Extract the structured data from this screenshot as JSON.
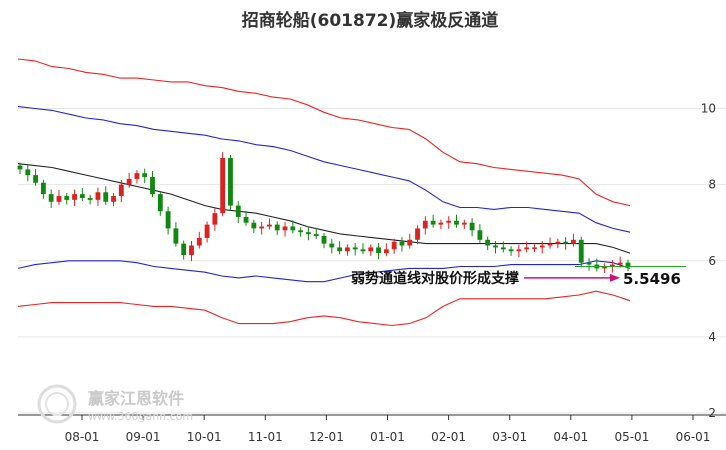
{
  "chart_data": {
    "type": "line",
    "title": "招商轮船(601872)赢家极反通道",
    "y_ticks": [
      2,
      4,
      6,
      8,
      10
    ],
    "ylim": [
      2,
      11.8
    ],
    "x_ticks": [
      "08-01",
      "09-01",
      "10-01",
      "11-01",
      "12-01",
      "01-01",
      "02-01",
      "03-01",
      "04-01",
      "05-01",
      "06-01"
    ],
    "grid": "horizontal",
    "annotation": {
      "text": "弱势通道线对股价形成支撑",
      "value": "5.5496"
    },
    "watermark": {
      "text": "赢家江恩软件",
      "url": "www.360gann.com"
    },
    "colors": {
      "up": "#dd2222",
      "down": "#118811",
      "outer_band": "#ee2222",
      "inner_band": "#2222dd",
      "mid_line": "#222222",
      "arrow": "#cc1177",
      "support": "#22aa22"
    },
    "series": [
      {
        "role": "outer-upper",
        "values": [
          11.3,
          11.25,
          11.1,
          11.05,
          10.95,
          10.9,
          10.8,
          10.8,
          10.75,
          10.7,
          10.7,
          10.6,
          10.55,
          10.45,
          10.4,
          10.3,
          10.25,
          10.1,
          9.9,
          9.75,
          9.7,
          9.6,
          9.5,
          9.45,
          9.2,
          8.85,
          8.6,
          8.55,
          8.45,
          8.4,
          8.35,
          8.3,
          8.25,
          8.15,
          7.75,
          7.55,
          7.45
        ]
      },
      {
        "role": "inner-upper",
        "values": [
          10.05,
          10.0,
          9.95,
          9.85,
          9.75,
          9.7,
          9.6,
          9.55,
          9.45,
          9.4,
          9.35,
          9.3,
          9.2,
          9.15,
          9.05,
          9.0,
          8.9,
          8.75,
          8.6,
          8.5,
          8.4,
          8.3,
          8.2,
          8.1,
          7.85,
          7.55,
          7.4,
          7.4,
          7.35,
          7.4,
          7.4,
          7.35,
          7.3,
          7.25,
          7.0,
          6.85,
          6.75
        ]
      },
      {
        "role": "middle",
        "values": [
          8.55,
          8.5,
          8.45,
          8.35,
          8.25,
          8.15,
          8.05,
          7.95,
          7.85,
          7.75,
          7.6,
          7.45,
          7.35,
          7.3,
          7.25,
          7.15,
          7.05,
          6.9,
          6.8,
          6.7,
          6.65,
          6.6,
          6.55,
          6.5,
          6.45,
          6.45,
          6.45,
          6.45,
          6.45,
          6.45,
          6.45,
          6.45,
          6.45,
          6.45,
          6.45,
          6.35,
          6.2
        ]
      },
      {
        "role": "inner-lower",
        "values": [
          5.8,
          5.9,
          5.95,
          6.0,
          6.0,
          6.0,
          6.0,
          5.95,
          5.85,
          5.8,
          5.75,
          5.7,
          5.6,
          5.55,
          5.6,
          5.55,
          5.5,
          5.45,
          5.45,
          5.55,
          5.65,
          5.7,
          5.75,
          5.8,
          5.8,
          5.8,
          5.85,
          5.85,
          5.85,
          5.9,
          5.9,
          5.9,
          5.9,
          5.9,
          6.0,
          5.95,
          5.8
        ]
      },
      {
        "role": "outer-lower",
        "values": [
          4.8,
          4.85,
          4.9,
          4.9,
          4.9,
          4.9,
          4.9,
          4.85,
          4.8,
          4.8,
          4.75,
          4.7,
          4.5,
          4.35,
          4.35,
          4.35,
          4.4,
          4.5,
          4.55,
          4.5,
          4.4,
          4.35,
          4.3,
          4.35,
          4.5,
          4.8,
          5.0,
          5.0,
          5.0,
          5.0,
          5.0,
          5.0,
          5.05,
          5.1,
          5.2,
          5.1,
          4.95
        ]
      }
    ],
    "candles": [
      8.4,
      8.25,
      8.05,
      7.75,
      7.55,
      7.7,
      7.6,
      7.75,
      7.65,
      7.6,
      7.8,
      7.55,
      7.7,
      8.0,
      8.15,
      8.3,
      8.2,
      7.75,
      7.3,
      6.85,
      6.45,
      6.15,
      6.4,
      6.6,
      6.95,
      7.25,
      8.7,
      7.45,
      7.15,
      7.0,
      6.85,
      6.9,
      6.95,
      6.8,
      6.9,
      6.8,
      6.75,
      6.7,
      6.65,
      6.45,
      6.35,
      6.25,
      6.35,
      6.3,
      6.25,
      6.35,
      6.2,
      6.3,
      6.5,
      6.4,
      6.55,
      6.85,
      7.05,
      6.95,
      7.0,
      7.05,
      6.95,
      7.0,
      6.8,
      6.55,
      6.4,
      6.35,
      6.3,
      6.25,
      6.3,
      6.35,
      6.35,
      6.4,
      6.45,
      6.5,
      6.45,
      6.55,
      5.95,
      5.9,
      5.8,
      5.85,
      5.9,
      5.95,
      5.85
    ]
  }
}
